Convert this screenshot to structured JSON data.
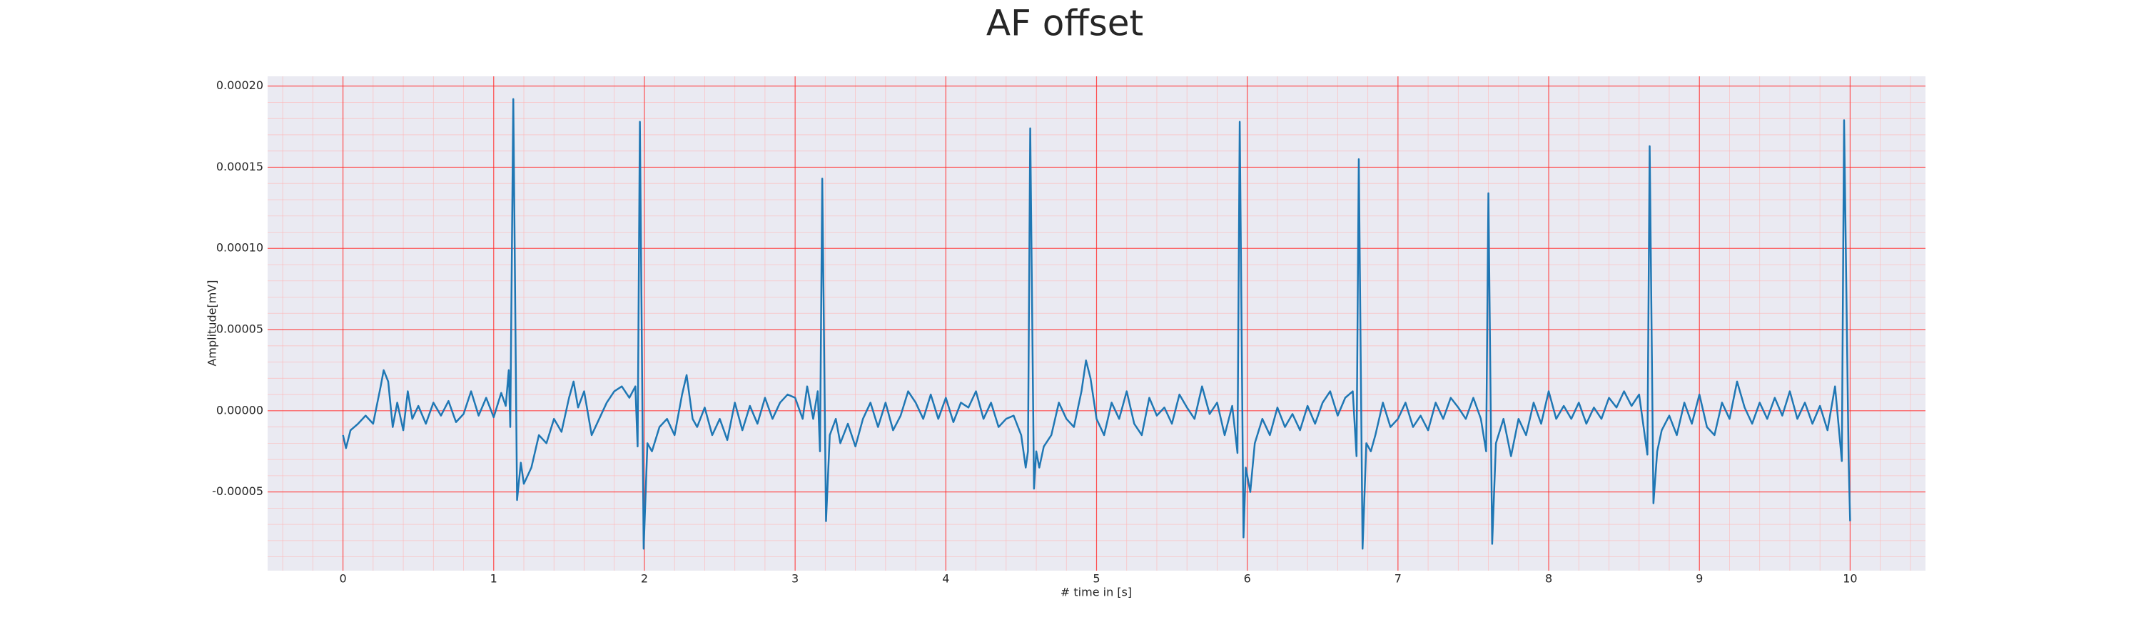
{
  "chart_data": {
    "type": "line",
    "title": "AF offset",
    "xlabel": "# time in [s]",
    "ylabel": "Amplitude[mV]",
    "color": "#1f77b4",
    "grid": true,
    "minor_grid": true,
    "xlim": [
      -0.5,
      10.5
    ],
    "xticks": [
      0,
      1,
      2,
      3,
      4,
      5,
      6,
      7,
      8,
      9,
      10
    ],
    "ylim": [
      -9.85e-05,
      0.000206
    ],
    "yticks": [
      {
        "value": -5e-05,
        "label": "-0.00005"
      },
      {
        "value": 0,
        "label": "0.00000"
      },
      {
        "value": 5e-05,
        "label": "0.00005"
      },
      {
        "value": 0.0001,
        "label": "0.00010"
      },
      {
        "value": 0.00015,
        "label": "0.00015"
      },
      {
        "value": 0.0002,
        "label": "0.00020"
      }
    ],
    "x": [
      0,
      0.02,
      0.05,
      0.1,
      0.15,
      0.2,
      0.25,
      0.27,
      0.3,
      0.33,
      0.36,
      0.4,
      0.43,
      0.46,
      0.5,
      0.55,
      0.6,
      0.65,
      0.7,
      0.75,
      0.8,
      0.85,
      0.9,
      0.95,
      1.0,
      1.05,
      1.08,
      1.1,
      1.11,
      1.13,
      1.155,
      1.18,
      1.2,
      1.25,
      1.3,
      1.35,
      1.4,
      1.45,
      1.5,
      1.53,
      1.56,
      1.6,
      1.65,
      1.7,
      1.75,
      1.8,
      1.85,
      1.9,
      1.94,
      1.955,
      1.97,
      1.995,
      2.02,
      2.05,
      2.1,
      2.15,
      2.2,
      2.25,
      2.28,
      2.32,
      2.35,
      2.4,
      2.45,
      2.5,
      2.55,
      2.6,
      2.65,
      2.7,
      2.75,
      2.8,
      2.85,
      2.9,
      2.95,
      3.0,
      3.05,
      3.08,
      3.12,
      3.15,
      3.165,
      3.18,
      3.205,
      3.23,
      3.27,
      3.3,
      3.35,
      3.4,
      3.45,
      3.5,
      3.55,
      3.6,
      3.65,
      3.7,
      3.75,
      3.8,
      3.85,
      3.9,
      3.95,
      4.0,
      4.05,
      4.1,
      4.15,
      4.2,
      4.25,
      4.3,
      4.35,
      4.4,
      4.45,
      4.5,
      4.53,
      4.545,
      4.56,
      4.585,
      4.6,
      4.62,
      4.65,
      4.7,
      4.75,
      4.8,
      4.85,
      4.9,
      4.93,
      4.96,
      5.0,
      5.05,
      5.1,
      5.15,
      5.2,
      5.25,
      5.3,
      5.35,
      5.4,
      5.45,
      5.5,
      5.55,
      5.6,
      5.65,
      5.7,
      5.75,
      5.8,
      5.85,
      5.9,
      5.935,
      5.95,
      5.975,
      5.99,
      6.02,
      6.05,
      6.1,
      6.15,
      6.2,
      6.25,
      6.3,
      6.35,
      6.4,
      6.45,
      6.5,
      6.55,
      6.6,
      6.65,
      6.7,
      6.725,
      6.74,
      6.765,
      6.79,
      6.82,
      6.85,
      6.9,
      6.95,
      7.0,
      7.05,
      7.1,
      7.15,
      7.2,
      7.25,
      7.3,
      7.35,
      7.4,
      7.45,
      7.5,
      7.55,
      7.585,
      7.6,
      7.625,
      7.65,
      7.7,
      7.75,
      7.8,
      7.85,
      7.9,
      7.95,
      8.0,
      8.05,
      8.1,
      8.15,
      8.2,
      8.25,
      8.3,
      8.35,
      8.4,
      8.45,
      8.5,
      8.55,
      8.6,
      8.655,
      8.67,
      8.695,
      8.72,
      8.75,
      8.8,
      8.85,
      8.9,
      8.95,
      9.0,
      9.05,
      9.1,
      9.15,
      9.2,
      9.25,
      9.3,
      9.35,
      9.4,
      9.45,
      9.5,
      9.55,
      9.6,
      9.65,
      9.7,
      9.75,
      9.8,
      9.85,
      9.9,
      9.945,
      9.96,
      9.99,
      10.0
    ],
    "values": [
      -1.5e-05,
      -2.3e-05,
      -1.2e-05,
      -8e-06,
      -3e-06,
      -8e-06,
      1.5e-05,
      2.5e-05,
      1.8e-05,
      -1e-05,
      5e-06,
      -1.2e-05,
      1.2e-05,
      -5e-06,
      3e-06,
      -8e-06,
      5e-06,
      -3e-06,
      6e-06,
      -7e-06,
      -2e-06,
      1.2e-05,
      -3e-06,
      8e-06,
      -4e-06,
      1.1e-05,
      3e-06,
      2.5e-05,
      -1e-05,
      0.000192,
      -5.5e-05,
      -3.2e-05,
      -4.5e-05,
      -3.5e-05,
      -1.5e-05,
      -2e-05,
      -5e-06,
      -1.3e-05,
      8e-06,
      1.8e-05,
      2e-06,
      1.2e-05,
      -1.5e-05,
      -5e-06,
      5e-06,
      1.2e-05,
      1.5e-05,
      8e-06,
      1.5e-05,
      -2.2e-05,
      0.000178,
      -8.5e-05,
      -2e-05,
      -2.5e-05,
      -1e-05,
      -5e-06,
      -1.5e-05,
      1e-05,
      2.2e-05,
      -5e-06,
      -1e-05,
      2e-06,
      -1.5e-05,
      -5e-06,
      -1.8e-05,
      5e-06,
      -1.2e-05,
      3e-06,
      -8e-06,
      8e-06,
      -5e-06,
      5e-06,
      1e-05,
      8e-06,
      -5e-06,
      1.5e-05,
      -5e-06,
      1.2e-05,
      -2.5e-05,
      0.000143,
      -6.8e-05,
      -1.5e-05,
      -5e-06,
      -2e-05,
      -8e-06,
      -2.2e-05,
      -5e-06,
      5e-06,
      -1e-05,
      5e-06,
      -1.2e-05,
      -3e-06,
      1.2e-05,
      5e-06,
      -5e-06,
      1e-05,
      -5e-06,
      8e-06,
      -7e-06,
      5e-06,
      2e-06,
      1.2e-05,
      -5e-06,
      5e-06,
      -1e-05,
      -5e-06,
      -3e-06,
      -1.5e-05,
      -3.5e-05,
      -2.5e-05,
      0.000174,
      -4.8e-05,
      -2.5e-05,
      -3.5e-05,
      -2.2e-05,
      -1.5e-05,
      5e-06,
      -5e-06,
      -1e-05,
      1.2e-05,
      3.1e-05,
      2e-05,
      -5e-06,
      -1.5e-05,
      5e-06,
      -5e-06,
      1.2e-05,
      -8e-06,
      -1.5e-05,
      8e-06,
      -3e-06,
      2e-06,
      -8e-06,
      1e-05,
      2e-06,
      -5e-06,
      1.5e-05,
      -2e-06,
      5e-06,
      -1.5e-05,
      3e-06,
      -2.6e-05,
      0.000178,
      -7.8e-05,
      -3.5e-05,
      -5e-05,
      -2e-05,
      -5e-06,
      -1.5e-05,
      2e-06,
      -1e-05,
      -2e-06,
      -1.2e-05,
      3e-06,
      -8e-06,
      5e-06,
      1.2e-05,
      -3e-06,
      8e-06,
      1.2e-05,
      -2.8e-05,
      0.000155,
      -8.5e-05,
      -2e-05,
      -2.5e-05,
      -1.5e-05,
      5e-06,
      -1e-05,
      -5e-06,
      5e-06,
      -1e-05,
      -3e-06,
      -1.2e-05,
      5e-06,
      -5e-06,
      8e-06,
      2e-06,
      -5e-06,
      8e-06,
      -5e-06,
      -2.5e-05,
      0.000134,
      -8.2e-05,
      -2e-05,
      -5e-06,
      -2.8e-05,
      -5e-06,
      -1.5e-05,
      5e-06,
      -8e-06,
      1.2e-05,
      -5e-06,
      3e-06,
      -5e-06,
      5e-06,
      -8e-06,
      2e-06,
      -5e-06,
      8e-06,
      2e-06,
      1.2e-05,
      3e-06,
      1e-05,
      -2.7e-05,
      0.000163,
      -5.7e-05,
      -2.5e-05,
      -1.2e-05,
      -3e-06,
      -1.5e-05,
      5e-06,
      -8e-06,
      1e-05,
      -1e-05,
      -1.5e-05,
      5e-06,
      -5e-06,
      1.8e-05,
      2e-06,
      -8e-06,
      5e-06,
      -5e-06,
      8e-06,
      -3e-06,
      1.2e-05,
      -5e-06,
      5e-06,
      -8e-06,
      3e-06,
      -1.2e-05,
      1.5e-05,
      -3.1e-05,
      0.000179,
      -3e-05,
      -6.8e-05
    ]
  }
}
